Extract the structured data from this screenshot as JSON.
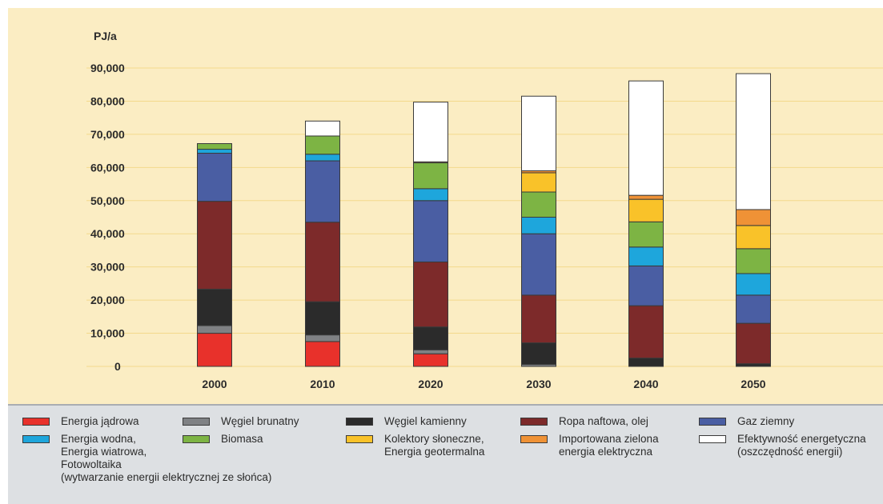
{
  "chart_data": {
    "type": "bar",
    "stacked": true,
    "unit_label": "PJ/a",
    "y_ticks": [
      "90,000",
      "80,000",
      "70,000",
      "60,000",
      "50,000",
      "40,000",
      "30,000",
      "20,000",
      "10,000",
      "0"
    ],
    "ylim": [
      0,
      90000
    ],
    "grid": true,
    "legend_placement": "bottom",
    "categories": [
      "2000",
      "2010",
      "2020",
      "2030",
      "2040",
      "2050"
    ],
    "series": [
      {
        "name": "Energia jądrowa",
        "color": "#e8312b",
        "values": [
          10000,
          7500,
          3800,
          0,
          0,
          0
        ]
      },
      {
        "name": "Węgiel brunatny",
        "color": "#7f8184",
        "values": [
          2300,
          2000,
          1200,
          600,
          0,
          0
        ]
      },
      {
        "name": "Węgiel kamienny",
        "color": "#2b2b2b",
        "values": [
          11000,
          10000,
          6900,
          6500,
          2500,
          800
        ]
      },
      {
        "name": "Ropa naftowa, olej",
        "color": "#7d2a2a",
        "values": [
          26500,
          24000,
          19600,
          14400,
          15800,
          12200
        ]
      },
      {
        "name": "Gaz ziemny",
        "color": "#4a5ea3",
        "values": [
          14500,
          18500,
          18500,
          18500,
          12000,
          8500
        ]
      },
      {
        "name": "Energia wodna,\nEnergia wiatrowa,\nFotowoltaika\n(wytwarzanie energii elektrycznej ze słońca)",
        "color": "#1ea6dc",
        "values": [
          1200,
          2000,
          3600,
          5000,
          5700,
          6500
        ]
      },
      {
        "name": "Biomasa",
        "color": "#7db444",
        "values": [
          1700,
          5500,
          7800,
          7600,
          7600,
          7500
        ]
      },
      {
        "name": "Kolektory słoneczne,\nEnergia geotermalna",
        "color": "#f9c229",
        "values": [
          0,
          0,
          0,
          5800,
          6800,
          7000
        ]
      },
      {
        "name": "Importowana zielona\nenergia elektryczna",
        "color": "#ef9236",
        "values": [
          0,
          0,
          300,
          600,
          1200,
          4800
        ]
      },
      {
        "name": "Efektywność energetyczna\n(oszczędność energii)",
        "color": "#ffffff",
        "values": [
          0,
          4500,
          18000,
          22500,
          34500,
          41000
        ]
      }
    ]
  }
}
